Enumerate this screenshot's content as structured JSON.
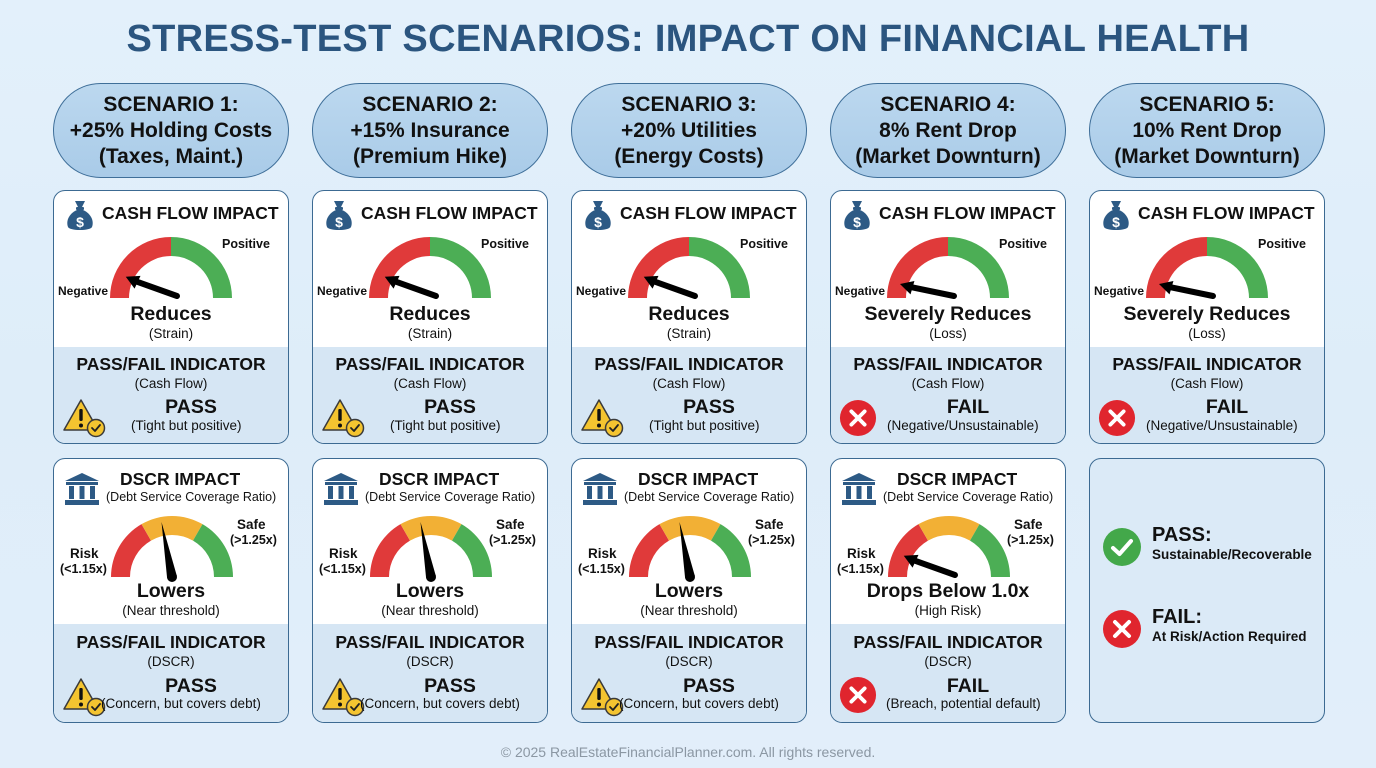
{
  "title": "STRESS-TEST SCENARIOS: IMPACT ON FINANCIAL HEALTH",
  "colors": {
    "title": "#2b557f",
    "red": "#e03a3a",
    "amber": "#f2b035",
    "green": "#4cae55",
    "warn_yellow": "#f4c430",
    "fail_red": "#e0252e",
    "pass_green": "#43a84a"
  },
  "labels": {
    "cash_flow_title": "CASH FLOW IMPACT",
    "gauge_negative": "Negative",
    "gauge_positive": "Positive",
    "dscr_title": "DSCR IMPACT",
    "dscr_subtitle": "(Debt Service Coverage Ratio)",
    "gauge_risk": "Risk",
    "gauge_risk_threshold": "(<1.15x)",
    "gauge_safe": "Safe",
    "gauge_safe_threshold": "(>1.25x)",
    "pass_fail_title": "PASS/FAIL INDICATOR",
    "pf_cash_flow": "(Cash Flow)",
    "pf_dscr": "(DSCR)"
  },
  "scenarios": [
    {
      "header": [
        "SCENARIO 1:",
        "+25% Holding Costs",
        "(Taxes, Maint.)"
      ],
      "cash_flow": {
        "result": "Reduces",
        "detail": "(Strain)",
        "needle_level": 0.14,
        "status": "PASS",
        "status_type": "warning",
        "status_detail": "(Tight but positive)"
      },
      "dscr": {
        "result": "Lowers",
        "detail": "(Near threshold)",
        "needle_level": 0.44,
        "status": "PASS",
        "status_type": "warning",
        "status_detail": "(Concern, but covers debt)"
      }
    },
    {
      "header": [
        "SCENARIO 2:",
        "+15% Insurance",
        "(Premium Hike)"
      ],
      "cash_flow": {
        "result": "Reduces",
        "detail": "(Strain)",
        "needle_level": 0.14,
        "status": "PASS",
        "status_type": "warning",
        "status_detail": "(Tight but positive)"
      },
      "dscr": {
        "result": "Lowers",
        "detail": "(Near threshold)",
        "needle_level": 0.44,
        "status": "PASS",
        "status_type": "warning",
        "status_detail": "(Concern, but covers debt)"
      }
    },
    {
      "header": [
        "SCENARIO 3:",
        "+20% Utilities",
        "(Energy Costs)"
      ],
      "cash_flow": {
        "result": "Reduces",
        "detail": "(Strain)",
        "needle_level": 0.14,
        "status": "PASS",
        "status_type": "warning",
        "status_detail": "(Tight but positive)"
      },
      "dscr": {
        "result": "Lowers",
        "detail": "(Near threshold)",
        "needle_level": 0.44,
        "status": "PASS",
        "status_type": "warning",
        "status_detail": "(Concern, but covers debt)"
      }
    },
    {
      "header": [
        "SCENARIO 4:",
        "8% Rent Drop",
        "(Market Downturn)"
      ],
      "cash_flow": {
        "result": "Severely Reduces",
        "detail": "(Loss)",
        "needle_level": 0.09,
        "status": "FAIL",
        "status_type": "fail",
        "status_detail": "(Negative/Unsustainable)"
      },
      "dscr": {
        "result": "Drops Below 1.0x",
        "detail": "(High Risk)",
        "needle_level": 0.14,
        "status": "FAIL",
        "status_type": "fail",
        "status_detail": "(Breach, potential default)"
      }
    },
    {
      "header": [
        "SCENARIO 5:",
        "10% Rent Drop",
        "(Market Downturn)"
      ],
      "cash_flow": {
        "result": "Severely Reduces",
        "detail": "(Loss)",
        "needle_level": 0.09,
        "status": "FAIL",
        "status_type": "fail",
        "status_detail": "(Negative/Unsustainable)"
      }
    }
  ],
  "legend": {
    "pass_label": "PASS:",
    "pass_desc": "Sustainable/Recoverable",
    "fail_label": "FAIL:",
    "fail_desc": "At Risk/Action Required"
  },
  "footer": "© 2025 RealEstateFinancialPlanner.com. All rights reserved."
}
